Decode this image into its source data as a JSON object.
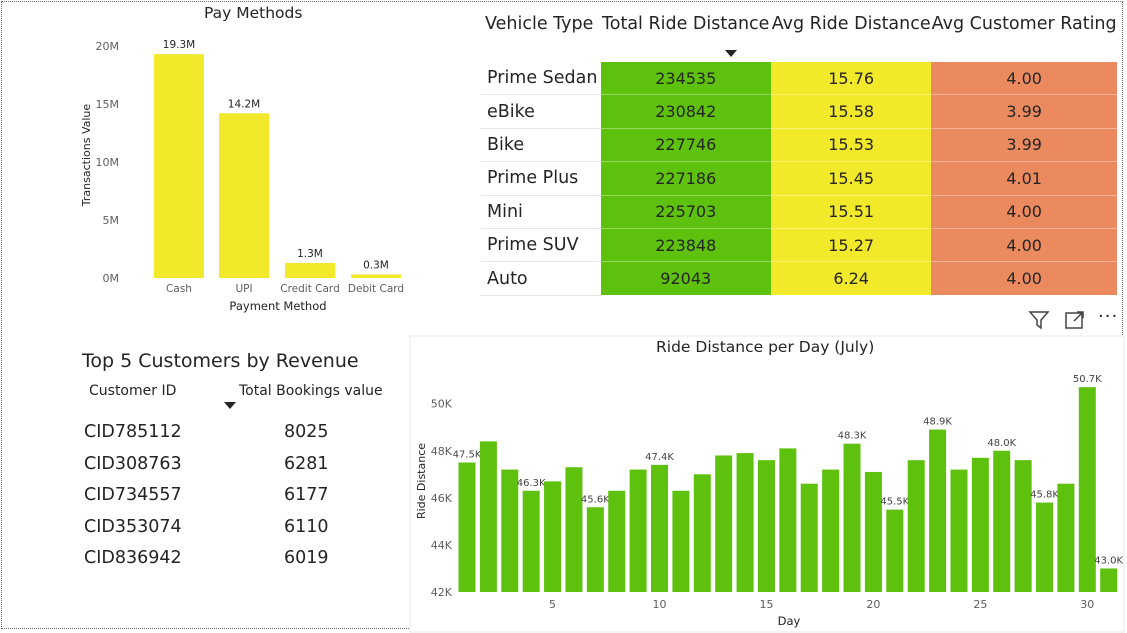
{
  "pay_methods": {
    "title": "Pay Methods",
    "chart_data": {
      "type": "bar",
      "title": "Pay Methods",
      "xlabel": "Payment Method",
      "ylabel": "Transactions Value",
      "categories": [
        "Cash",
        "UPI",
        "Credit Card",
        "Debit Card"
      ],
      "values": [
        19.3,
        14.2,
        1.3,
        0.3
      ],
      "data_labels": [
        "19.3M",
        "14.2M",
        "1.3M",
        "0.3M"
      ],
      "yticks": [
        "0M",
        "5M",
        "10M",
        "15M",
        "20M"
      ],
      "ylim": [
        0,
        20
      ],
      "unit": "M",
      "color": "#F2E92B"
    }
  },
  "vehicle_table": {
    "headers": [
      "Vehicle Type",
      "Total Ride Distance",
      "Avg Ride Distance",
      "Avg Customer Rating"
    ],
    "rows": [
      {
        "type": "Prime Sedan",
        "total": "234535",
        "avg": "15.76",
        "rating": "4.00"
      },
      {
        "type": "eBike",
        "total": "230842",
        "avg": "15.58",
        "rating": "3.99"
      },
      {
        "type": "Bike",
        "total": "227746",
        "avg": "15.53",
        "rating": "3.99"
      },
      {
        "type": "Prime Plus",
        "total": "227186",
        "avg": "15.45",
        "rating": "4.01"
      },
      {
        "type": "Mini",
        "total": "225703",
        "avg": "15.51",
        "rating": "4.00"
      },
      {
        "type": "Prime SUV",
        "total": "223848",
        "avg": "15.27",
        "rating": "4.00"
      },
      {
        "type": "Auto",
        "total": "92043",
        "avg": "6.24",
        "rating": "4.00"
      }
    ],
    "colors": {
      "total": "#5EC10E",
      "avg": "#F2E92B",
      "rating": "#EC8A5F"
    }
  },
  "top_customers": {
    "title": "Top 5 Customers by Revenue",
    "col_id": "Customer ID",
    "col_value": "Total Bookings value",
    "rows": [
      {
        "id": "CID785112",
        "value": "8025"
      },
      {
        "id": "CID308763",
        "value": "6281"
      },
      {
        "id": "CID734557",
        "value": "6177"
      },
      {
        "id": "CID353074",
        "value": "6110"
      },
      {
        "id": "CID836942",
        "value": "6019"
      }
    ]
  },
  "visual_header": {
    "icons": [
      "filter-icon",
      "focus-mode-icon",
      "more-options-icon"
    ],
    "more_glyph": "···"
  },
  "ride_distance": {
    "title": "Ride Distance per Day (July)",
    "chart_data": {
      "type": "bar",
      "title": "Ride Distance per Day (July)",
      "xlabel": "Day",
      "ylabel": "Ride Distance",
      "x": [
        1,
        2,
        3,
        4,
        5,
        6,
        7,
        8,
        9,
        10,
        11,
        12,
        13,
        14,
        15,
        16,
        17,
        18,
        19,
        20,
        21,
        22,
        23,
        24,
        25,
        26,
        27,
        28,
        29,
        30,
        31
      ],
      "values": [
        47.5,
        48.4,
        47.2,
        46.3,
        46.7,
        47.3,
        45.6,
        46.3,
        47.2,
        47.4,
        46.3,
        47.0,
        47.8,
        47.9,
        47.6,
        48.1,
        46.6,
        47.2,
        48.3,
        47.1,
        45.5,
        47.6,
        48.9,
        47.2,
        47.7,
        48.0,
        47.6,
        45.8,
        46.6,
        50.7,
        43.0
      ],
      "data_labels": {
        "1": "47.5K",
        "4": "46.3K",
        "7": "45.6K",
        "10": "47.4K",
        "19": "48.3K",
        "21": "45.5K",
        "23": "48.9K",
        "26": "48.0K",
        "28": "45.8K",
        "30": "50.7K",
        "31": "43.0K"
      },
      "xticks": [
        "5",
        "10",
        "15",
        "20",
        "25",
        "30"
      ],
      "yticks": [
        "42K",
        "44K",
        "46K",
        "48K",
        "50K"
      ],
      "ylim": [
        42,
        51.6
      ],
      "unit": "K",
      "color": "#5EC10E"
    }
  }
}
